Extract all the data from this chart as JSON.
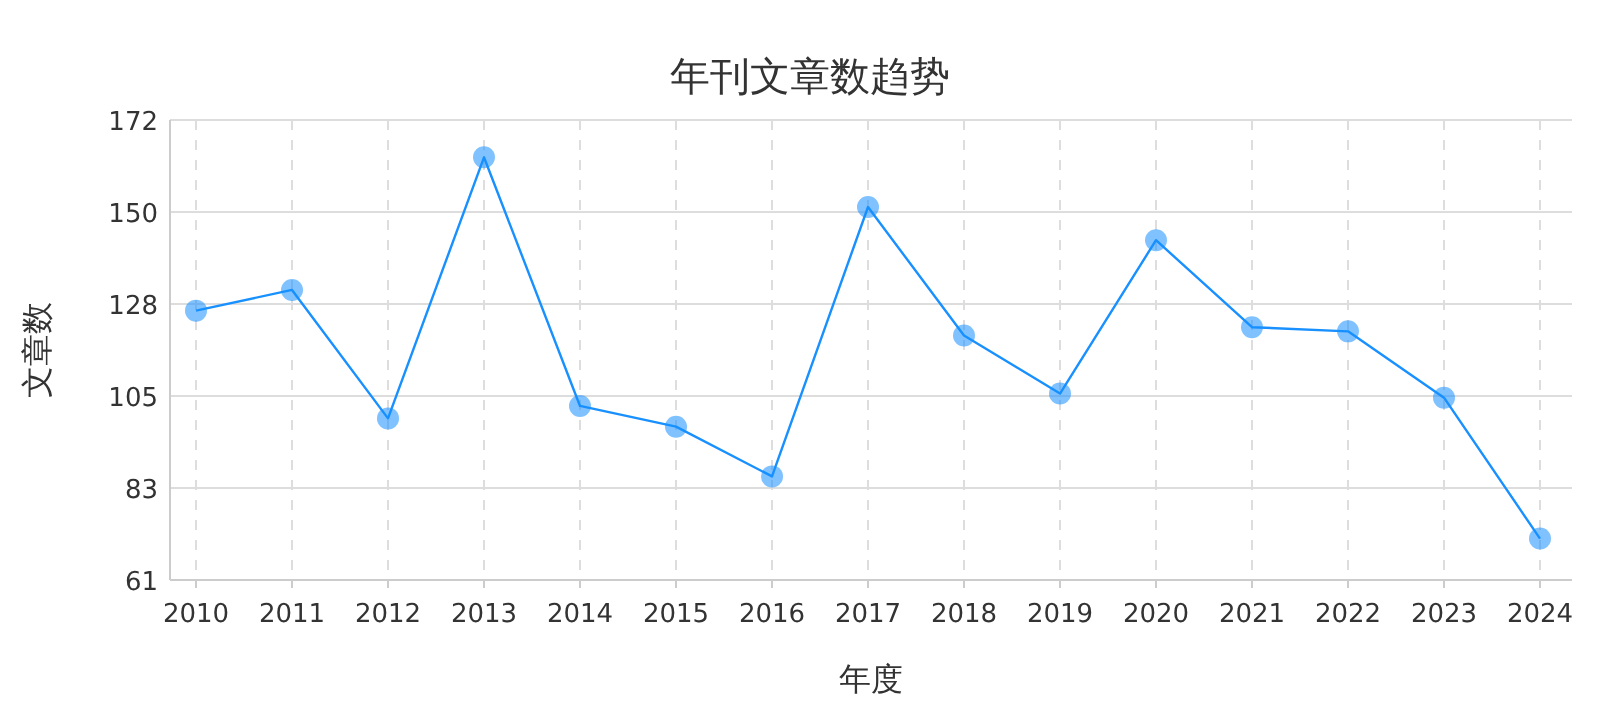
{
  "chart_data": {
    "type": "line",
    "title": "年刊文章数趋势",
    "xlabel": "年度",
    "ylabel": "文章数",
    "categories": [
      "2010",
      "2011",
      "2012",
      "2013",
      "2014",
      "2015",
      "2016",
      "2017",
      "2018",
      "2019",
      "2020",
      "2021",
      "2022",
      "2023",
      "2024"
    ],
    "series": [
      {
        "color": "#1890ff",
        "values": [
          126,
          131,
          100,
          163,
          103,
          98,
          86,
          151,
          120,
          106,
          143,
          122,
          121,
          105,
          71
        ]
      }
    ],
    "ylim": [
      61,
      172
    ],
    "yticks": [
      61,
      {
        "value": 83.2,
        "label": "83"
      },
      {
        "value": 105.4,
        "label": "105"
      },
      {
        "value": 127.6,
        "label": "128"
      },
      {
        "value": 149.8,
        "label": "150"
      },
      172
    ],
    "grid": true,
    "marker": "circle",
    "line_style": "solid"
  }
}
